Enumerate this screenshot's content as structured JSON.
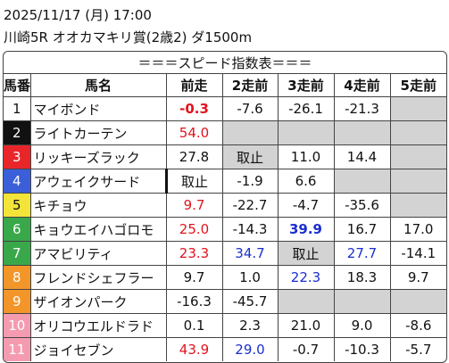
{
  "header": {
    "datetime": "2025/11/17 (月) 17:00",
    "race": "川崎5R オオカマキリ賞(2歳2) ダ1500m"
  },
  "table": {
    "title": "＝＝＝スピード指数表＝＝＝",
    "columns": [
      "馬番",
      "馬名",
      "前走",
      "2走前",
      "3走前",
      "4走前",
      "5走前"
    ],
    "rows": [
      {
        "num": "1",
        "name": "マイボンド",
        "speeds": [
          "-0.3",
          "-7.6",
          "-26.1",
          "-21.3"
        ]
      },
      {
        "num": "2",
        "name": "ライトカーテン",
        "speeds": [
          "54.0"
        ]
      },
      {
        "num": "3",
        "name": "リッキーズラック",
        "speeds": [
          "27.8",
          "取止",
          "11.0",
          "14.4"
        ]
      },
      {
        "num": "4",
        "name": "アウェイクサード",
        "speeds": [
          "取止",
          "-1.9",
          "6.6"
        ]
      },
      {
        "num": "5",
        "name": "キチョウ",
        "speeds": [
          "9.7",
          "-22.7",
          "-4.7",
          "-35.6"
        ]
      },
      {
        "num": "6",
        "name": "キョウエイハゴロモ",
        "speeds": [
          "25.0",
          "-14.3",
          "39.9",
          "16.7",
          "17.0"
        ]
      },
      {
        "num": "7",
        "name": "アマビリティ",
        "speeds": [
          "23.3",
          "34.7",
          "取止",
          "27.7",
          "-14.1"
        ]
      },
      {
        "num": "8",
        "name": "フレンドシェフラー",
        "speeds": [
          "9.7",
          "1.0",
          "22.3",
          "18.3",
          "9.7"
        ]
      },
      {
        "num": "9",
        "name": "ザイオンパーク",
        "speeds": [
          "-16.3",
          "-45.7"
        ]
      },
      {
        "num": "10",
        "name": "オリコウエルドラド",
        "speeds": [
          "0.1",
          "2.3",
          "21.0",
          "9.0",
          "-8.6"
        ]
      },
      {
        "num": "11",
        "name": "ジョイセブン",
        "speeds": [
          "43.9",
          "29.0",
          "-0.7",
          "-10.3",
          "-5.7"
        ]
      }
    ]
  }
}
